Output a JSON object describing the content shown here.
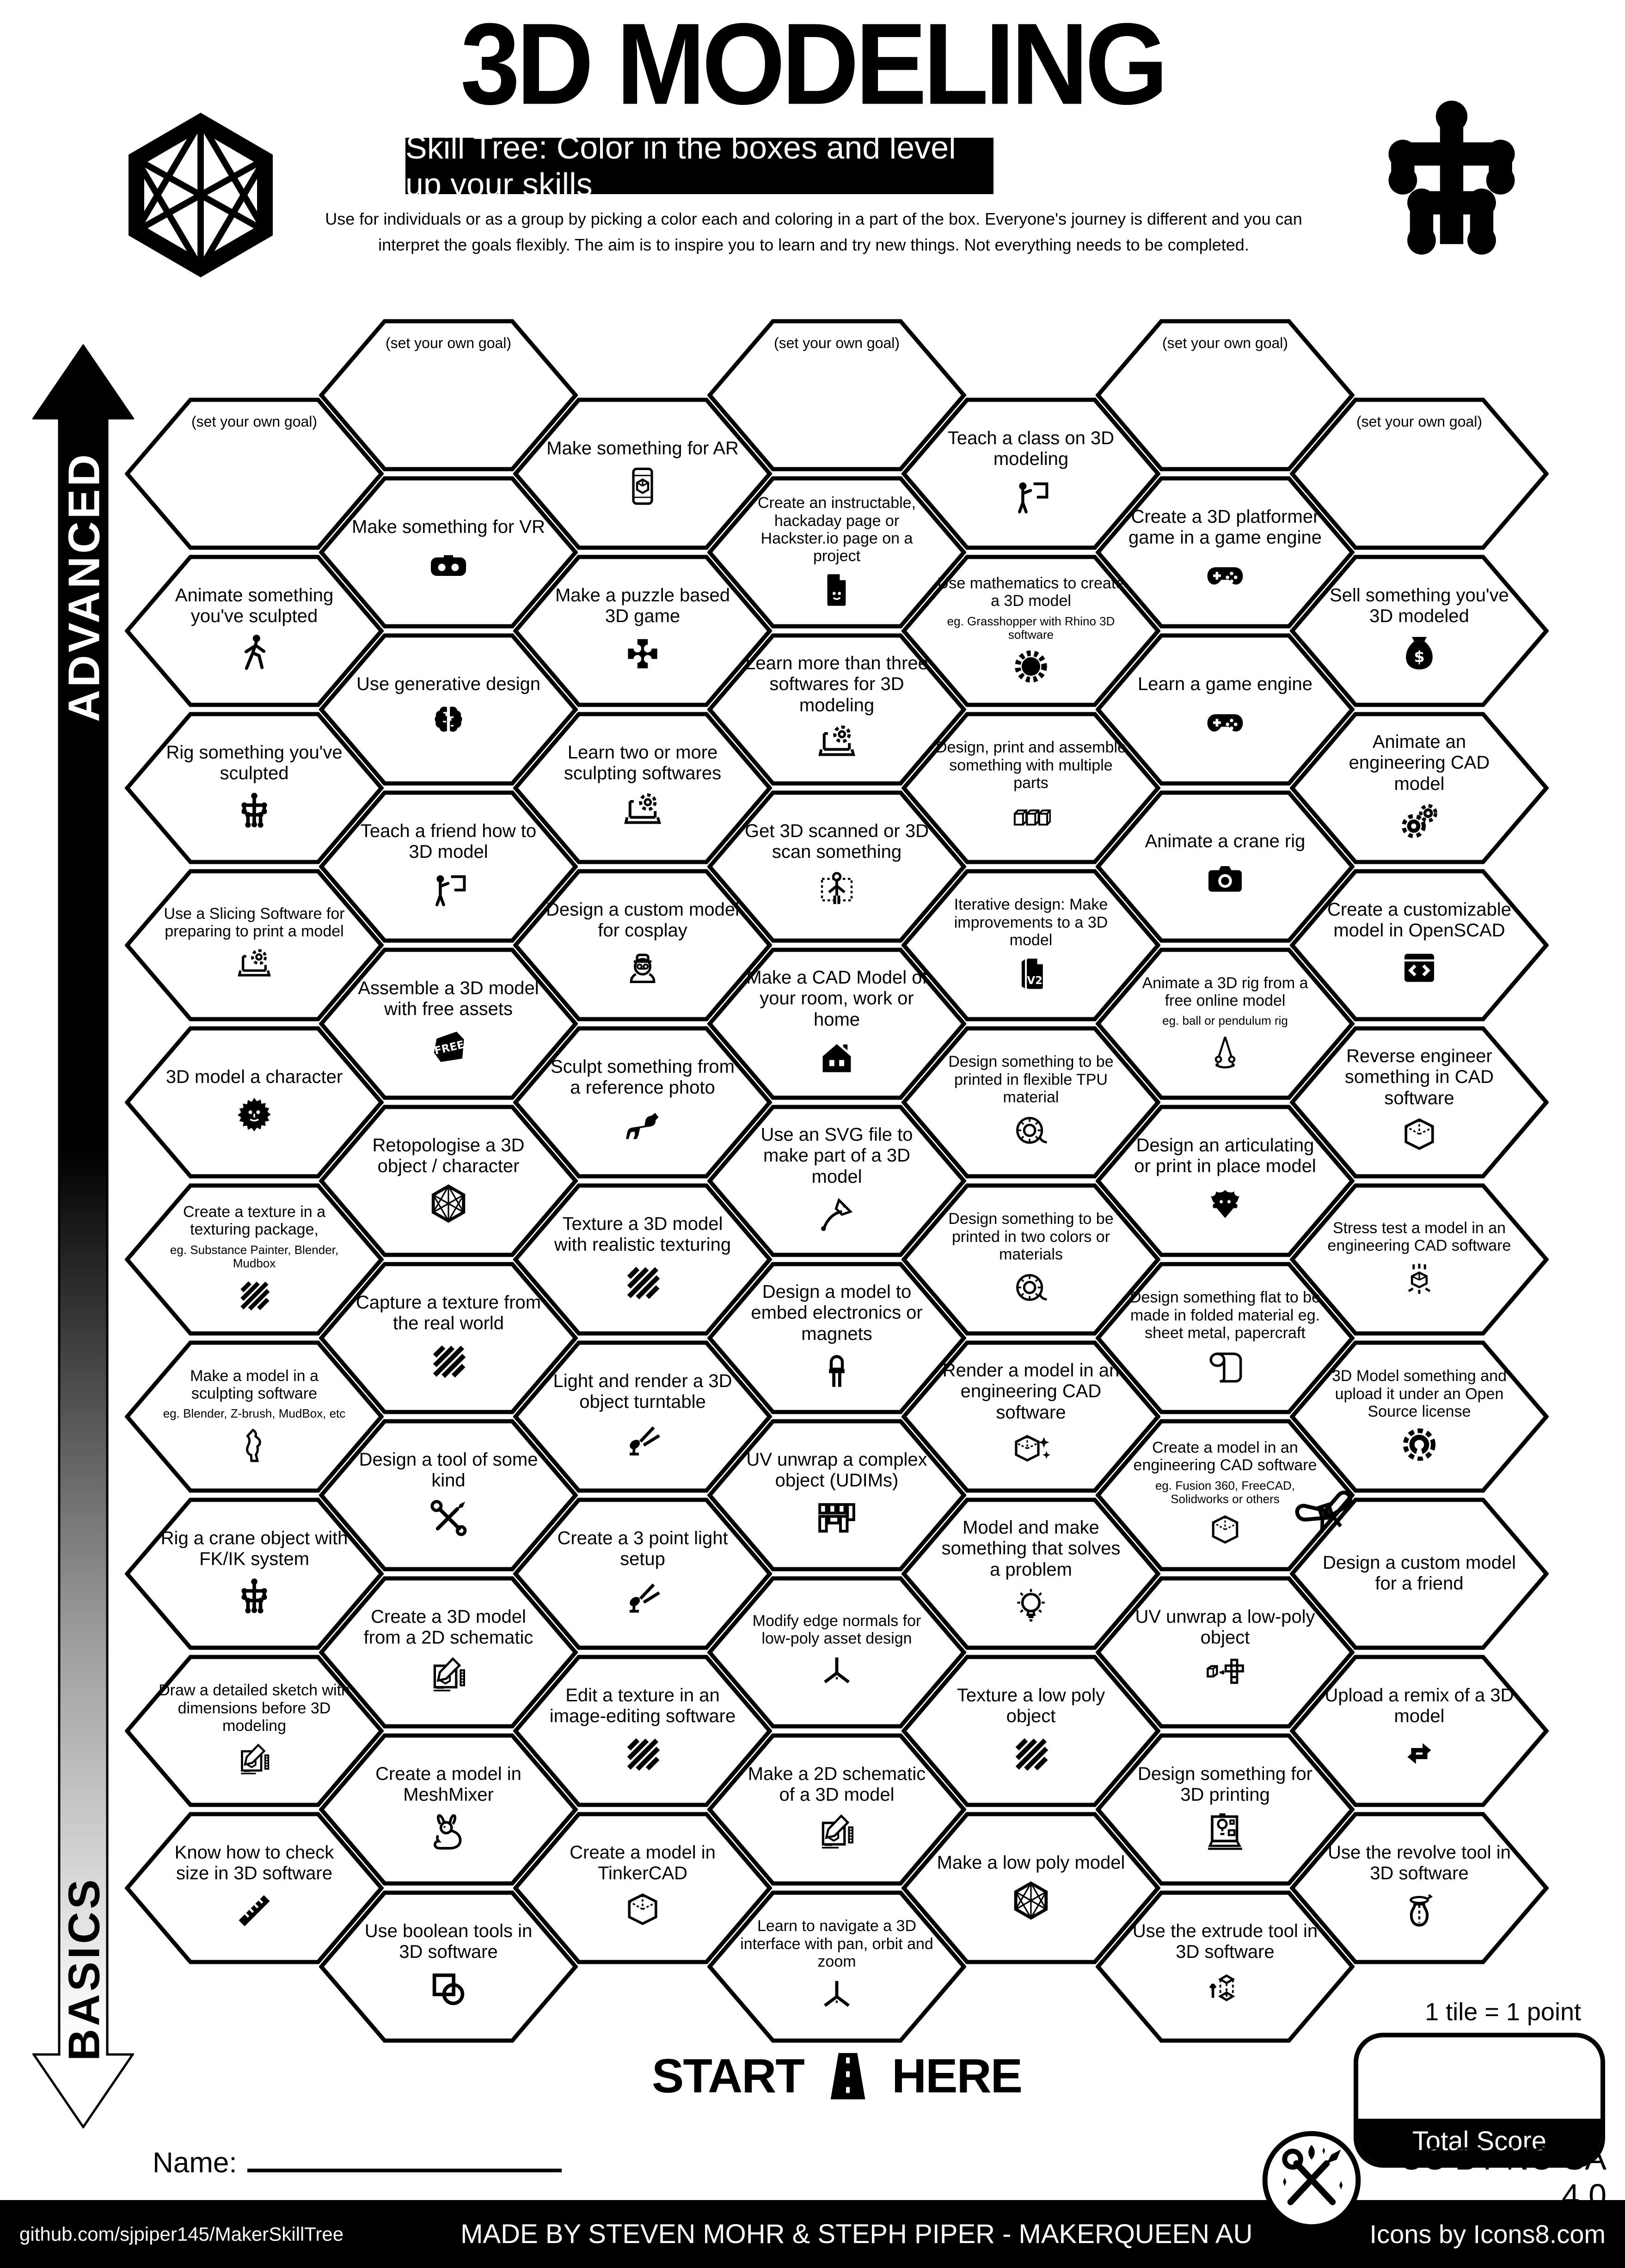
{
  "header": {
    "title": "3D MODELING",
    "subtitle": "Skill Tree:  Color in the boxes and level up your skills",
    "description_line1": "Use for individuals or as a group by picking a color each and coloring in a part of the box.  Everyone's journey is different and you can",
    "description_line2": "interpret the goals flexibly.  The aim is to inspire you to learn and try new things. Not everything needs to be completed."
  },
  "axis": {
    "top_label": "ADVANCED",
    "bottom_label": "BASICS"
  },
  "start_marker": {
    "left": "START",
    "right": "HERE"
  },
  "name_field": {
    "label": "Name:"
  },
  "score": {
    "tile_note": "1 tile = 1 point",
    "box_label": "Total Score"
  },
  "license": {
    "text": "CC BY-NC-SA 4.0"
  },
  "footer": {
    "left": "github.com/sjpiper145/MakerSkillTree",
    "center": "MADE BY STEVEN MOHR & STEPH PIPER  -  MAKERQUEEN AU",
    "right": "Icons by Icons8.com"
  },
  "grid": [
    {
      "hexes": [
        {
          "goal": true,
          "label": "(set your own goal)",
          "icon": "none"
        },
        {
          "label": "Animate something you've sculpted",
          "icon": "walk"
        },
        {
          "label": "Rig something you've sculpted",
          "icon": "rig"
        },
        {
          "label": "Use a Slicing Software for preparing to print a model",
          "icon": "laptopgear",
          "small": true
        },
        {
          "label": "3D model a character",
          "icon": "face"
        },
        {
          "label": "Create a texture in a texturing package,",
          "sub": "eg. Substance Painter, Blender, Mudbox",
          "icon": "hatch",
          "small": true
        },
        {
          "label": "Make a model in a sculpting software",
          "sub": "eg. Blender, Z-brush, MudBox, etc",
          "icon": "statue",
          "small": true
        },
        {
          "label": "Rig a crane object with FK/IK system",
          "icon": "rig"
        },
        {
          "label": "Draw a detailed sketch with dimensions before 3D modeling",
          "icon": "sketch",
          "small": true
        },
        {
          "label": "Know how to check size in 3D software",
          "icon": "ruler"
        }
      ]
    },
    {
      "hexes": [
        {
          "goal": true,
          "label": "(set your own goal)",
          "icon": "none"
        },
        {
          "label": "Make something for VR",
          "icon": "vr"
        },
        {
          "label": "Use generative design",
          "icon": "brain"
        },
        {
          "label": "Teach a friend how to 3D model",
          "icon": "teach"
        },
        {
          "label": "Assemble a 3D model with free assets",
          "icon": "freetag"
        },
        {
          "label": "Retopologise a 3D object / character",
          "icon": "hexwire"
        },
        {
          "label": "Capture a texture from the real world",
          "icon": "hatch"
        },
        {
          "label": "Design a tool of some kind",
          "icon": "tools"
        },
        {
          "label": "Create a 3D model from a 2D schematic",
          "icon": "sketch"
        },
        {
          "label": "Create a model in MeshMixer",
          "icon": "rabbit"
        },
        {
          "label": "Use boolean tools in 3D software",
          "icon": "boolean"
        }
      ]
    },
    {
      "hexes": [
        {
          "label": "Make something for AR",
          "icon": "ar"
        },
        {
          "label": "Make a puzzle based 3D game",
          "icon": "puzzle"
        },
        {
          "label": "Learn two or more sculpting softwares",
          "icon": "laptopgear"
        },
        {
          "label": "Design a custom model for cosplay",
          "icon": "cosplay"
        },
        {
          "label": "Sculpt something from a reference photo",
          "icon": "dog"
        },
        {
          "label": "Texture a 3D model with realistic texturing",
          "icon": "hatch"
        },
        {
          "label": "Light and render a 3D object turntable",
          "icon": "spotlight"
        },
        {
          "label": "Create a 3 point light setup",
          "icon": "spotlight"
        },
        {
          "label": "Edit a texture in an image-editing software",
          "icon": "hatch"
        },
        {
          "label": "Create a model in TinkerCAD",
          "icon": "cubeiso"
        }
      ]
    },
    {
      "hexes": [
        {
          "goal": true,
          "label": "(set your own goal)",
          "icon": "none"
        },
        {
          "label": "Create an instructable, hackaday page or Hackster.io page on a project",
          "icon": "doc",
          "small": true
        },
        {
          "label": "Learn more than three softwares for 3D modeling",
          "icon": "laptopgear"
        },
        {
          "label": "Get 3D scanned or 3D scan something",
          "icon": "scan"
        },
        {
          "label": "Make a CAD Model of your room, work or home",
          "icon": "house"
        },
        {
          "label": "Use an SVG file to make part of a 3D model",
          "icon": "pennib"
        },
        {
          "label": "Design a model to embed electronics or magnets",
          "icon": "led"
        },
        {
          "label": "UV unwrap a complex object (UDIMs)",
          "icon": "udim"
        },
        {
          "label": "Modify edge normals for low-poly asset design",
          "icon": "axes",
          "small": true
        },
        {
          "label": "Make a 2D schematic of a 3D model",
          "icon": "sketch"
        },
        {
          "label": "Learn to navigate a 3D interface with pan, orbit and zoom",
          "icon": "axes",
          "small": true
        }
      ]
    },
    {
      "hexes": [
        {
          "label": "Teach a class on 3D modeling",
          "icon": "teach"
        },
        {
          "label": "Use mathematics to create a 3D model",
          "sub": "eg. Grasshopper with Rhino 3D software",
          "icon": "burst",
          "small": true
        },
        {
          "label": "Design, print and assemble something with multiple parts",
          "icon": "cubes3",
          "small": true
        },
        {
          "label": "Iterative design:  Make improvements to a 3D model",
          "icon": "v2file",
          "small": true
        },
        {
          "label": "Design something to be printed in flexible TPU material",
          "icon": "spool",
          "small": true
        },
        {
          "label": "Design something to be printed in two colors or materials",
          "icon": "spool",
          "small": true
        },
        {
          "label": "Render a model in an engineering CAD software",
          "icon": "sparklecube"
        },
        {
          "label": "Model and make something that solves a problem",
          "icon": "bulb"
        },
        {
          "label": "Texture a low poly object",
          "icon": "hatch"
        },
        {
          "label": "Make a low poly model",
          "icon": "hexwire"
        }
      ]
    },
    {
      "hexes": [
        {
          "goal": true,
          "label": "(set your own goal)",
          "icon": "none"
        },
        {
          "label": "Create a 3D platformer game in a game engine",
          "icon": "gamepad"
        },
        {
          "label": "Learn a game engine",
          "icon": "gamepad"
        },
        {
          "label": "Animate a crane rig",
          "icon": "camera"
        },
        {
          "label": "Animate a 3D rig from a free online model",
          "sub": "eg. ball or pendulum rig",
          "icon": "pendulum",
          "small": true
        },
        {
          "label": "Design an articulating or print in place model",
          "icon": "dragon"
        },
        {
          "label": "Design something flat to be made in folded material eg. sheet metal, papercraft",
          "icon": "roll",
          "small": true
        },
        {
          "label": "Create a model in an engineering CAD software",
          "sub": "eg. Fusion 360, FreeCAD, Solidworks or others",
          "icon": "cubeiso",
          "small": true
        },
        {
          "label": "UV unwrap a low-poly object",
          "icon": "unfold"
        },
        {
          "label": "Design something for 3D printing",
          "icon": "printer"
        },
        {
          "label": "Use the extrude tool in 3D software",
          "icon": "extrude"
        }
      ]
    },
    {
      "hexes": [
        {
          "goal": true,
          "label": "(set your own goal)",
          "icon": "none"
        },
        {
          "label": "Sell something you've 3D modeled",
          "icon": "money"
        },
        {
          "label": "Animate an engineering CAD model",
          "icon": "gears2"
        },
        {
          "label": "Create a customizable model in OpenSCAD",
          "icon": "code"
        },
        {
          "label": "Reverse engineer something in CAD software",
          "icon": "cubeiso"
        },
        {
          "label": "Stress test a model in an engineering CAD software",
          "icon": "stress",
          "small": true
        },
        {
          "label": "3D Model something and upload it under an Open Source license",
          "icon": "osgear",
          "small": true
        },
        {
          "label": "Design a custom model for a friend",
          "icon": "bow",
          "icon_pos": "top-left"
        },
        {
          "label": "Upload a remix of a 3D model",
          "icon": "remix"
        },
        {
          "label": "Use the revolve tool in 3D software",
          "icon": "vase"
        }
      ]
    }
  ]
}
